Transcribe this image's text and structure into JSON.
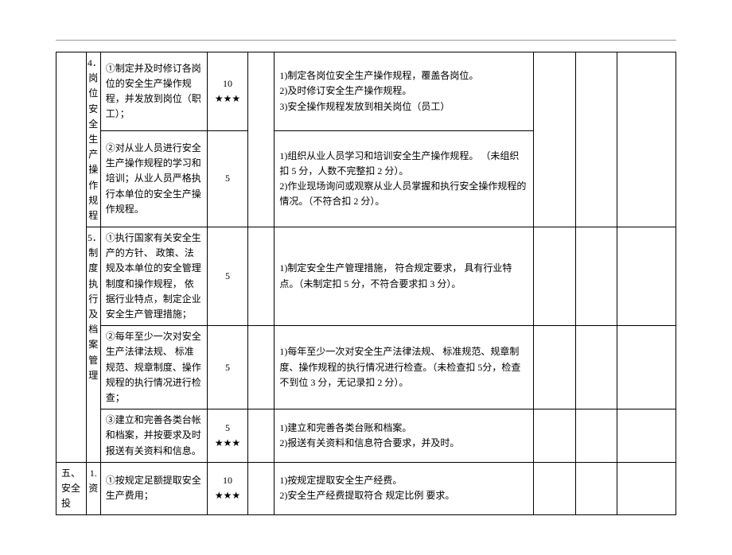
{
  "rows": [
    {
      "cat1": "",
      "cat2": "4．岗位安全生产操作规程",
      "item": "①制定并及时修订各岗位的安全生产操作规程，并发放到岗位（职工）；",
      "score": "10\n★★★",
      "criteria": "1)制定各岗位安全生产操作规程，覆盖各岗位。\n2)及时修订安全生产操作规程。\n3)安全操作规程发放到相关岗位（员工）"
    },
    {
      "item": "②对从业人员进行安全生产操作规程的学习和培训；从业人员严格执行本单位的安全生产操作规程。",
      "score": "5",
      "criteria": "1)组织从业人员学习和培训安全生产操作规程。  （未组织扣 5 分，人数不完整扣  2 分）。\n2)作业现场询问或观察从业人员掌握和执行安全操作规程的情况。（不符合扣  2 分）。"
    },
    {
      "cat2": "5．制度执行及档案管理",
      "item": "①执行国家有关安全生产的方针、 政策、法规及本单位的安全管理制度和操作规程， 依据行业特点，制定企业安全生产管理措施；",
      "score": "5",
      "criteria": "1)制定安全生产管理措施，  符合规定要求，  具有行业特点。（未制定扣  5 分，不符合要求扣   3 分）。"
    },
    {
      "item": "②每年至少一次对安全生产法律法规、 标准规范、规章制度、操作规程的执行情况进行检查；",
      "score": "5",
      "criteria": "1)每年至少一次对安全生产法律法规、  标准规范、规章制度、操作规程的执行情况进行检查。（未检查扣 5分，检查不到位  3 分，无记录扣  2 分）。"
    },
    {
      "item": "③建立和完善各类台帐和档案，并按要求及时报送有关资料和信息。",
      "score": "5\n★★★",
      "criteria": "1)建立和完善各类台账和档案。\n2)报送有关资料和信息符合要求，并及时。"
    },
    {
      "cat1": "五、安全 投",
      "cat2": "1.资",
      "item": "①按规定足额提取安全生产费用；",
      "score": "10\n★★★",
      "criteria": "1)按规定提取安全生产经费。\n2)安全生产经费提取符合 规定比例 要求。"
    }
  ]
}
